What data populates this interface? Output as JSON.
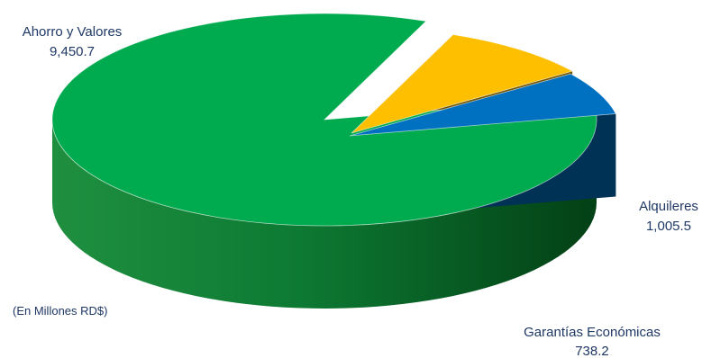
{
  "chart_data": {
    "type": "pie",
    "title": "",
    "note": "(En Millones RD$)",
    "slices": [
      {
        "label": "Ahorro y Valores",
        "value": 9450.7,
        "value_text": "9,450.7",
        "color": "#00aa4f",
        "exploded": false
      },
      {
        "label": "Alquileres",
        "value": 1005.5,
        "value_text": "1,005.5",
        "color": "#fdbf00",
        "exploded": true
      },
      {
        "label": "Garantías Económicas",
        "value": 738.2,
        "value_text": "738.2",
        "color": "#0070c0",
        "exploded": true
      }
    ],
    "legend": "none",
    "three_d": true
  }
}
